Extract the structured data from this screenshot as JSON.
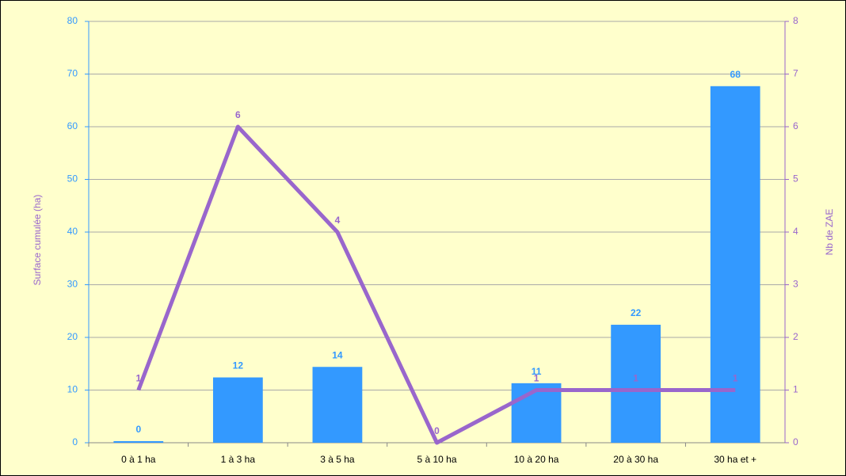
{
  "chart_data": {
    "type": "bar_line",
    "categories": [
      "0 à 1 ha",
      "1 à 3 ha",
      "3 à 5 ha",
      "5 à 10 ha",
      "10 à 20 ha",
      "20 à 30 ha",
      "30 ha et +"
    ],
    "series": [
      {
        "name": "Surface cumulée (ha)",
        "type": "bar",
        "color": "#3399ff",
        "values": [
          0.3,
          12.4,
          14.4,
          null,
          11.3,
          22.4,
          67.7
        ],
        "value_labels": [
          "0",
          "12",
          "14",
          null,
          "11",
          "22",
          "68"
        ]
      },
      {
        "name": "Nb de ZAE",
        "type": "line",
        "axis": "y2",
        "color": "#9966cc",
        "values": [
          1,
          6,
          4,
          0,
          1,
          1,
          1
        ]
      }
    ],
    "ylabel": "Surface cumulée (ha)",
    "y2label": "Nb de ZAE",
    "ylim": [
      0,
      80
    ],
    "yticks": [
      0,
      10,
      20,
      30,
      40,
      50,
      60,
      70,
      80
    ],
    "y2lim": [
      0,
      8
    ],
    "y2ticks": [
      0,
      1,
      2,
      3,
      4,
      5,
      6,
      7,
      8
    ],
    "grid": true
  }
}
